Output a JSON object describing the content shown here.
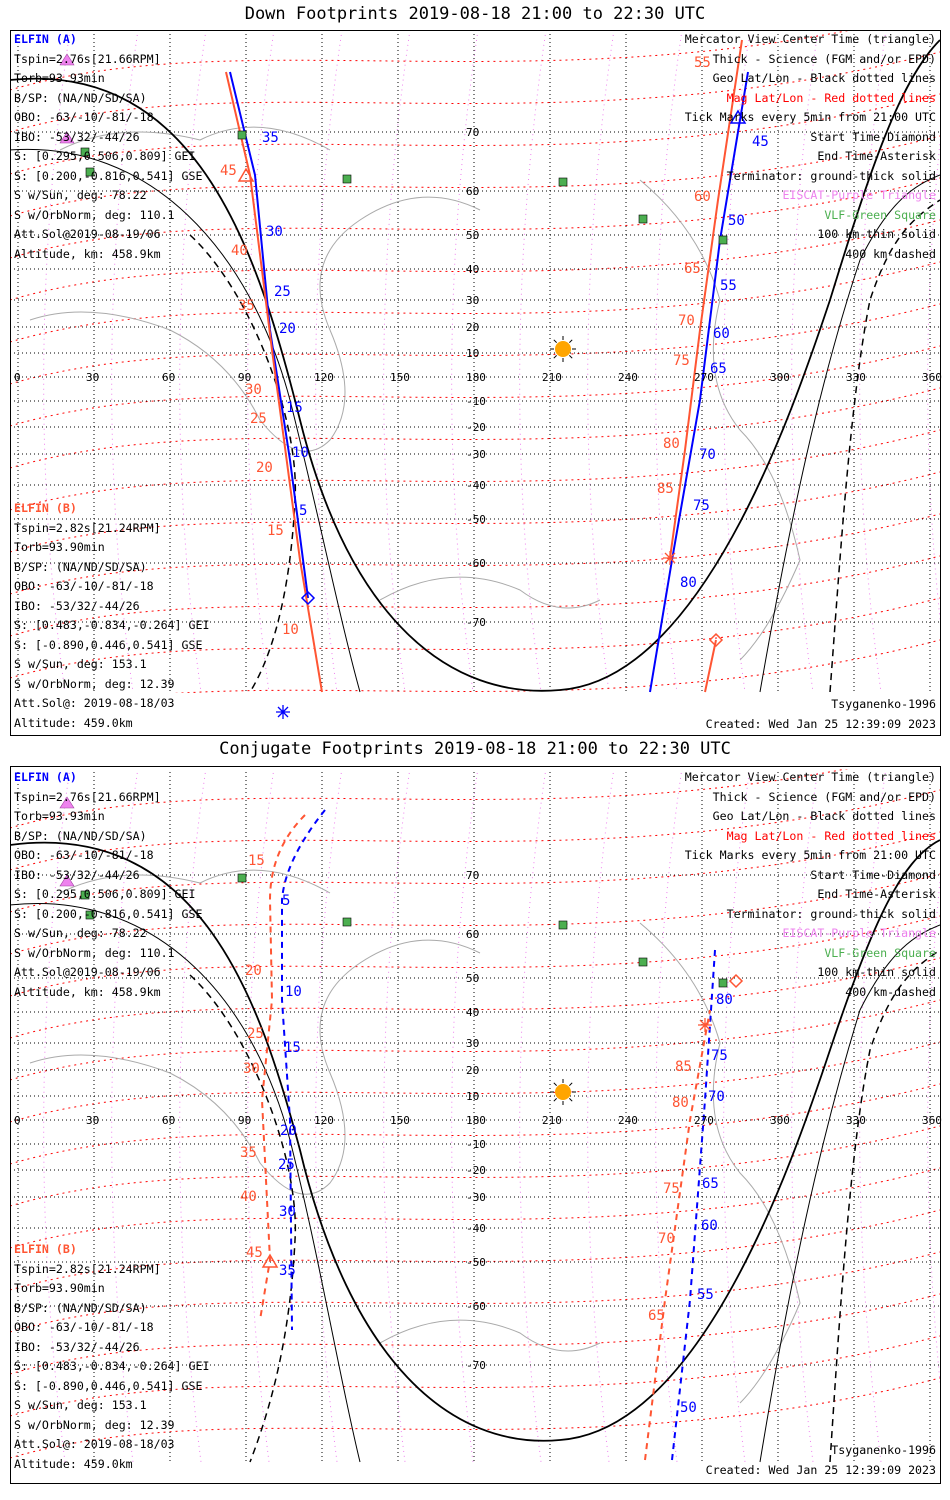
{
  "panels": [
    {
      "title": "Down Footprints 2019-08-18 21:00 to 22:30 UTC",
      "elfin_a": {
        "name": "ELFIN (A)",
        "lines": [
          "Tspin=2.76s[21.66RPM]",
          "Torb=93.93min",
          "B/SP: (NA/ND/SD/SA)",
          "OBO: -63/-10/-81/-18",
          "IBO: -53/32/-44/26",
          "S: [0.295,0.506,0.809] GEI",
          "S: [0.200,-0.816,0.541] GSE",
          "S w/Sun, deg: 78.22",
          "S w/OrbNorm, deg: 110.1",
          "Att.Sol@2019-08-19/06",
          "Altitude, km: 458.9km"
        ]
      },
      "elfin_b": {
        "name": "ELFIN (B)",
        "lines": [
          "Tspin=2.82s[21.24RPM]",
          "Torb=93.90min",
          "B/SP: (NA/ND/SD/SA)",
          "OBO: -63/-10/-81/-18",
          "IBO: -53/32/-44/26",
          "S: [0.483,-0.834,-0.264] GEI",
          "S: [-0.890,0.446,0.541] GSE",
          "S w/Sun, deg: 153.1",
          "S w/OrbNorm, deg: 12.39",
          "Att.Sol@: 2019-08-18/03",
          "Altitude: 459.0km"
        ]
      },
      "model": "Tsyganenko-1996",
      "created": "Created: Wed Jan 25 12:39:09 2023",
      "a_ticks_left": [
        "35",
        "30",
        "25",
        "20",
        "15",
        "10",
        "5"
      ],
      "b_ticks_left": [
        "45",
        "40",
        "35",
        "30",
        "25",
        "20",
        "15",
        "10"
      ],
      "a_ticks_right": [
        "45",
        "50",
        "55",
        "60",
        "65",
        "70",
        "75",
        "80"
      ],
      "b_ticks_right": [
        "55",
        "60",
        "65",
        "70",
        "75",
        "80",
        "85"
      ]
    },
    {
      "title": "Conjugate Footprints 2019-08-18 21:00 to 22:30 UTC",
      "elfin_a": {
        "name": "ELFIN (A)",
        "lines": [
          "Tspin=2.76s[21.66RPM]",
          "Torb=93.93min",
          "B/SP: (NA/ND/SD/SA)",
          "OBO: -63/-10/-81/-18",
          "IBO: -53/32/-44/26",
          "S: [0.295,0.506,0.809] GEI",
          "S: [0.200,-0.816,0.541] GSE",
          "S w/Sun, deg: 78.22",
          "S w/OrbNorm, deg: 110.1",
          "Att.Sol@2019-08-19/06",
          "Altitude, km: 458.9km"
        ]
      },
      "elfin_b": {
        "name": "ELFIN (B)",
        "lines": [
          "Tspin=2.82s[21.24RPM]",
          "Torb=93.90min",
          "B/SP: (NA/ND/SD/SA)",
          "OBO: -63/-10/-81/-18",
          "IBO: -53/32/-44/26",
          "S: [0.483,-0.834,-0.264] GEI",
          "S: [-0.890,0.446,0.541] GSE",
          "S w/Sun, deg: 153.1",
          "S w/OrbNorm, deg: 12.39",
          "Att.Sol@: 2019-08-18/03",
          "Altitude: 459.0km"
        ]
      },
      "model": "Tsyganenko-1996",
      "created": "Created: Wed Jan 25 12:39:09 2023",
      "a_ticks_left": [
        "5",
        "10",
        "15",
        "20",
        "25",
        "30",
        "35"
      ],
      "b_ticks_left": [
        "15",
        "20",
        "25",
        "30",
        "35",
        "40",
        "45"
      ],
      "a_ticks_right": [
        "50",
        "55",
        "60",
        "65",
        "70",
        "75",
        "80"
      ],
      "b_ticks_right": [
        "65",
        "70",
        "75",
        "80",
        "85"
      ]
    }
  ],
  "legend": [
    {
      "text": "Mercator View Center Time (triangle)",
      "color": "#000000"
    },
    {
      "text": "Thick - Science (FGM and/or EPD)",
      "color": "#000000"
    },
    {
      "text": "Geo Lat/Lon - Black dotted lines",
      "color": "#000000"
    },
    {
      "text": "Mag Lat/Lon - Red dotted lines",
      "color": "#ff0000"
    },
    {
      "text": "Tick Marks every 5min from 21:00 UTC",
      "color": "#000000"
    },
    {
      "text": "Start Time-Diamond",
      "color": "#000000"
    },
    {
      "text": "End Time-Asterisk",
      "color": "#000000"
    },
    {
      "text": "Terminator: ground-thick solid",
      "color": "#000000"
    },
    {
      "text": "EISCAT-Purple Triangle",
      "color": "#ee82ee"
    },
    {
      "text": "VLF-Green Square",
      "color": "#4caf50"
    },
    {
      "text": "100 km-thin solid",
      "color": "#000000"
    },
    {
      "text": "400 km-dashed",
      "color": "#000000"
    }
  ],
  "lon_labels": [
    "0",
    "30",
    "60",
    "90",
    "120",
    "150",
    "180",
    "210",
    "240",
    "270",
    "300",
    "330",
    "360"
  ],
  "lat_labels": [
    "70",
    "60",
    "50",
    "40",
    "30",
    "20",
    "10",
    "-10",
    "-20",
    "-30",
    "-40",
    "-50",
    "-60",
    "-70"
  ],
  "colors": {
    "elfin_a": "#0000ff",
    "elfin_b": "#ff5533",
    "mag_grid": "#ff0000",
    "eiscat": "#ee82ee",
    "vlf": "#4caf50",
    "sun": "#ffa500",
    "coast": "#aaaaaa"
  }
}
